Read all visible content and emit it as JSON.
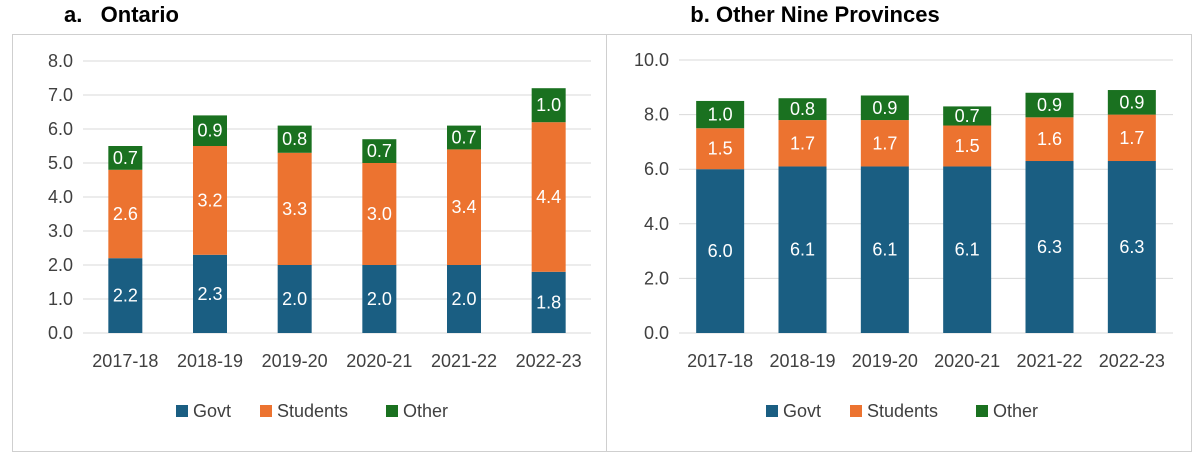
{
  "colors": {
    "govt": "#1a5e82",
    "students": "#ec7330",
    "other": "#1a7120",
    "grid": "#d9d9d9"
  },
  "chart_data": [
    {
      "type": "bar",
      "stacked": true,
      "title": "a.   Ontario",
      "categories": [
        "2017-18",
        "2018-19",
        "2019-20",
        "2020-21",
        "2021-22",
        "2022-23"
      ],
      "series": [
        {
          "name": "Govt",
          "values": [
            2.2,
            2.3,
            2.0,
            2.0,
            2.0,
            1.8
          ]
        },
        {
          "name": "Students",
          "values": [
            2.6,
            3.2,
            3.3,
            3.0,
            3.4,
            4.4
          ]
        },
        {
          "name": "Other",
          "values": [
            0.7,
            0.9,
            0.8,
            0.7,
            0.7,
            1.0
          ]
        }
      ],
      "ylim": [
        0,
        8
      ],
      "yticks": [
        "0.0",
        "1.0",
        "2.0",
        "3.0",
        "4.0",
        "5.0",
        "6.0",
        "7.0",
        "8.0"
      ],
      "grid": true,
      "legend": "bottom"
    },
    {
      "type": "bar",
      "stacked": true,
      "title": "b. Other Nine Provinces",
      "categories": [
        "2017-18",
        "2018-19",
        "2019-20",
        "2020-21",
        "2021-22",
        "2022-23"
      ],
      "series": [
        {
          "name": "Govt",
          "values": [
            6.0,
            6.1,
            6.1,
            6.1,
            6.3,
            6.3
          ]
        },
        {
          "name": "Students",
          "values": [
            1.5,
            1.7,
            1.7,
            1.5,
            1.6,
            1.7
          ]
        },
        {
          "name": "Other",
          "values": [
            1.0,
            0.8,
            0.9,
            0.7,
            0.9,
            0.9
          ]
        }
      ],
      "ylim": [
        0,
        10
      ],
      "yticks": [
        "0.0",
        "2.0",
        "4.0",
        "6.0",
        "8.0",
        "10.0"
      ],
      "grid": true,
      "legend": "bottom"
    }
  ]
}
